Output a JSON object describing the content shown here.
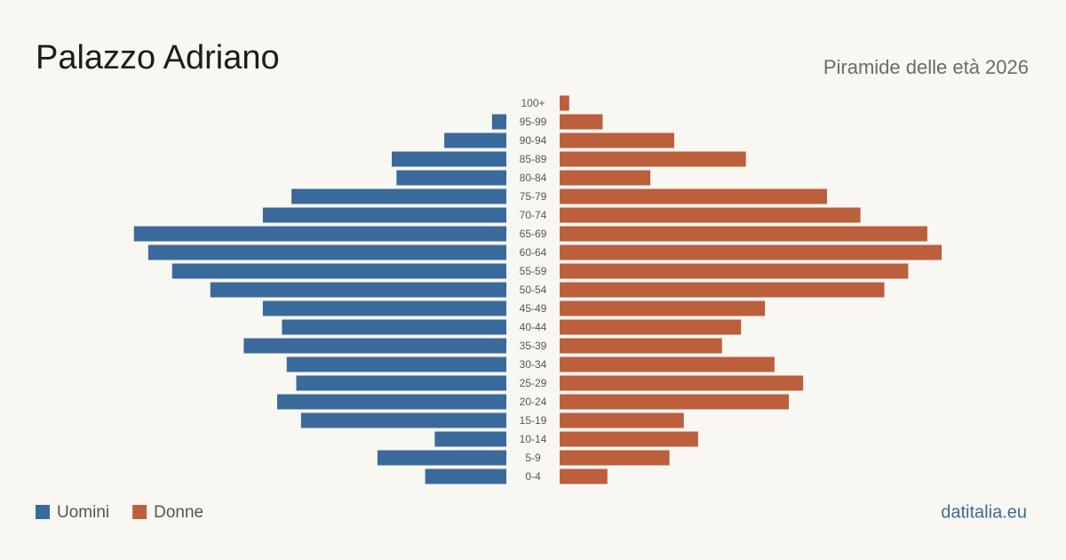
{
  "chart_data": {
    "type": "pyramid",
    "title": "Palazzo Adriano",
    "subtitle": "Piramide delle età 2026",
    "source": "datitalia.eu",
    "categories": [
      "100+",
      "95-99",
      "90-94",
      "85-89",
      "80-84",
      "75-79",
      "70-74",
      "65-69",
      "60-64",
      "55-59",
      "50-54",
      "45-49",
      "40-44",
      "35-39",
      "30-34",
      "25-29",
      "20-24",
      "15-19",
      "10-14",
      "5-9",
      "0-4"
    ],
    "series": [
      {
        "name": "Uomini",
        "color": "#3a6a9c",
        "values": [
          0,
          3,
          13,
          24,
          23,
          45,
          51,
          78,
          75,
          70,
          62,
          51,
          47,
          55,
          46,
          44,
          48,
          43,
          15,
          27,
          17
        ]
      },
      {
        "name": "Donne",
        "color": "#bc5f3c",
        "values": [
          2,
          9,
          24,
          39,
          19,
          56,
          63,
          77,
          80,
          73,
          68,
          43,
          38,
          34,
          45,
          51,
          48,
          26,
          29,
          23,
          10
        ]
      }
    ]
  }
}
